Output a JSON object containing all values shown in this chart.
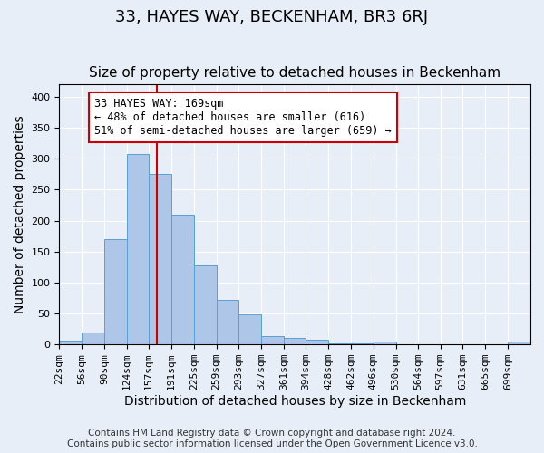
{
  "title": "33, HAYES WAY, BECKENHAM, BR3 6RJ",
  "subtitle": "Size of property relative to detached houses in Beckenham",
  "xlabel": "Distribution of detached houses by size in Beckenham",
  "ylabel": "Number of detached properties",
  "footnote1": "Contains HM Land Registry data © Crown copyright and database right 2024.",
  "footnote2": "Contains public sector information licensed under the Open Government Licence v3.0.",
  "bin_labels": [
    "22sqm",
    "56sqm",
    "90sqm",
    "124sqm",
    "157sqm",
    "191sqm",
    "225sqm",
    "259sqm",
    "293sqm",
    "327sqm",
    "361sqm",
    "394sqm",
    "428sqm",
    "462sqm",
    "496sqm",
    "530sqm",
    "564sqm",
    "597sqm",
    "631sqm",
    "665sqm",
    "699sqm"
  ],
  "bar_heights": [
    6,
    20,
    170,
    308,
    275,
    210,
    127,
    72,
    48,
    13,
    11,
    7,
    2,
    2,
    5,
    0,
    0,
    0,
    0,
    0,
    5
  ],
  "bin_edges": [
    22,
    56,
    90,
    124,
    157,
    191,
    225,
    259,
    293,
    327,
    361,
    394,
    428,
    462,
    496,
    530,
    564,
    597,
    631,
    665,
    699,
    733
  ],
  "property_size": 169,
  "bar_color": "#aec6e8",
  "bar_edge_color": "#5a9fd4",
  "vline_color": "#cc0000",
  "annotation_text": "33 HAYES WAY: 169sqm\n← 48% of detached houses are smaller (616)\n51% of semi-detached houses are larger (659) →",
  "annotation_box_color": "#ffffff",
  "annotation_box_edge": "#cc0000",
  "ylim": [
    0,
    420
  ],
  "yticks": [
    0,
    50,
    100,
    150,
    200,
    250,
    300,
    350,
    400
  ],
  "background_color": "#e8eef7",
  "axes_background": "#e8eef7",
  "grid_color": "#ffffff",
  "title_fontsize": 13,
  "subtitle_fontsize": 11,
  "label_fontsize": 10,
  "tick_fontsize": 8,
  "footnote_fontsize": 7.5
}
